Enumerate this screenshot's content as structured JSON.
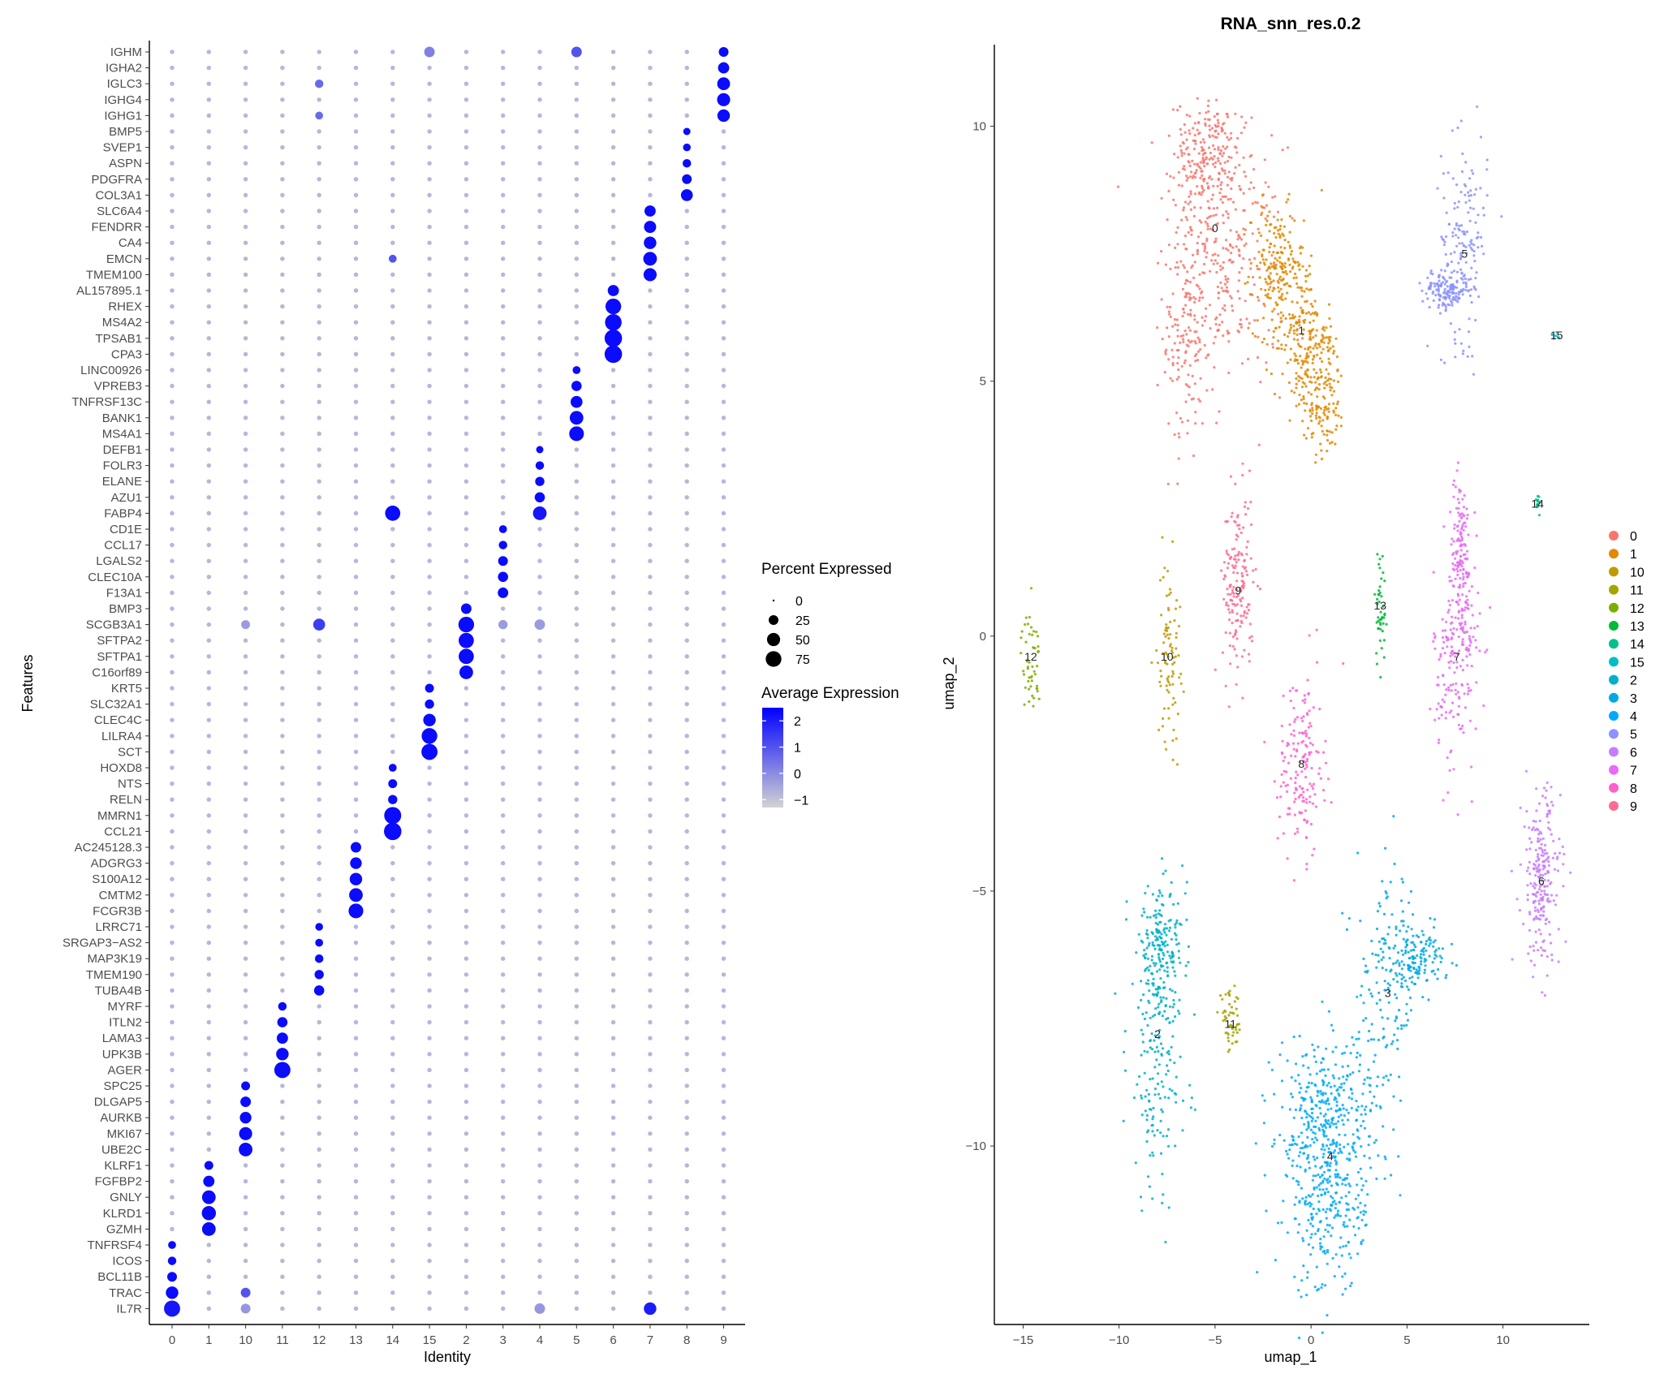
{
  "chart_data": [
    {
      "type": "dotplot",
      "xlabel": "Identity",
      "ylabel": "Features",
      "identities": [
        "0",
        "1",
        "10",
        "11",
        "12",
        "13",
        "14",
        "15",
        "2",
        "3",
        "4",
        "5",
        "6",
        "7",
        "8",
        "9"
      ],
      "features_top_to_bottom": [
        "IGHM",
        "IGHA2",
        "IGLC3",
        "IGHG4",
        "IGHG1",
        "BMP5",
        "SVEP1",
        "ASPN",
        "PDGFRA",
        "COL3A1",
        "SLC6A4",
        "FENDRR",
        "CA4",
        "EMCN",
        "TMEM100",
        "AL157895.1",
        "RHEX",
        "MS4A2",
        "TPSAB1",
        "CPA3",
        "LINC00926",
        "VPREB3",
        "TNFRSF13C",
        "BANK1",
        "MS4A1",
        "DEFB1",
        "FOLR3",
        "ELANE",
        "AZU1",
        "FABP4",
        "CD1E",
        "CCL17",
        "LGALS2",
        "CLEC10A",
        "F13A1",
        "BMP3",
        "SCGB3A1",
        "SFTPA2",
        "SFTPA1",
        "C16orf89",
        "KRT5",
        "SLC32A1",
        "CLEC4C",
        "LILRA4",
        "SCT",
        "HOXD8",
        "NTS",
        "RELN",
        "MMRN1",
        "CCL21",
        "AC245128.3",
        "ADGRG3",
        "S100A12",
        "CMTM2",
        "FCGR3B",
        "LRRC71",
        "SRGAP3−AS2",
        "MAP3K19",
        "TMEM190",
        "TUBA4B",
        "MYRF",
        "ITLN2",
        "LAMA3",
        "UPK3B",
        "AGER",
        "SPC25",
        "DLGAP5",
        "AURKB",
        "MKI67",
        "UBE2C",
        "KLRF1",
        "FGFBP2",
        "GNLY",
        "KLRD1",
        "GZMH",
        "TNFRSF4",
        "ICOS",
        "BCL11B",
        "TRAC",
        "IL7R"
      ],
      "marker_dots": [
        {
          "feature": "IGHM",
          "identity": "9",
          "pct": 25,
          "avg": 2.3
        },
        {
          "feature": "IGHA2",
          "identity": "9",
          "pct": 35,
          "avg": 2.3
        },
        {
          "feature": "IGLC3",
          "identity": "9",
          "pct": 48,
          "avg": 2.3
        },
        {
          "feature": "IGHG4",
          "identity": "9",
          "pct": 50,
          "avg": 2.3
        },
        {
          "feature": "IGHG1",
          "identity": "9",
          "pct": 45,
          "avg": 2.3
        },
        {
          "feature": "BMP5",
          "identity": "8",
          "pct": 12,
          "avg": 2.3
        },
        {
          "feature": "SVEP1",
          "identity": "8",
          "pct": 14,
          "avg": 2.3
        },
        {
          "feature": "ASPN",
          "identity": "8",
          "pct": 18,
          "avg": 2.3
        },
        {
          "feature": "PDGFRA",
          "identity": "8",
          "pct": 25,
          "avg": 2.3
        },
        {
          "feature": "COL3A1",
          "identity": "8",
          "pct": 40,
          "avg": 2.3
        },
        {
          "feature": "SLC6A4",
          "identity": "7",
          "pct": 35,
          "avg": 2.3
        },
        {
          "feature": "FENDRR",
          "identity": "7",
          "pct": 42,
          "avg": 2.3
        },
        {
          "feature": "CA4",
          "identity": "7",
          "pct": 45,
          "avg": 2.3
        },
        {
          "feature": "EMCN",
          "identity": "7",
          "pct": 55,
          "avg": 2.3
        },
        {
          "feature": "TMEM100",
          "identity": "7",
          "pct": 50,
          "avg": 2.3
        },
        {
          "feature": "AL157895.1",
          "identity": "6",
          "pct": 35,
          "avg": 2.3
        },
        {
          "feature": "RHEX",
          "identity": "6",
          "pct": 75,
          "avg": 2.3
        },
        {
          "feature": "MS4A2",
          "identity": "6",
          "pct": 85,
          "avg": 2.3
        },
        {
          "feature": "TPSAB1",
          "identity": "6",
          "pct": 95,
          "avg": 2.3
        },
        {
          "feature": "CPA3",
          "identity": "6",
          "pct": 95,
          "avg": 2.3
        },
        {
          "feature": "LINC00926",
          "identity": "5",
          "pct": 15,
          "avg": 2.3
        },
        {
          "feature": "VPREB3",
          "identity": "5",
          "pct": 28,
          "avg": 2.3
        },
        {
          "feature": "TNFRSF13C",
          "identity": "5",
          "pct": 40,
          "avg": 2.3
        },
        {
          "feature": "BANK1",
          "identity": "5",
          "pct": 55,
          "avg": 2.3
        },
        {
          "feature": "MS4A1",
          "identity": "5",
          "pct": 65,
          "avg": 2.3
        },
        {
          "feature": "DEFB1",
          "identity": "4",
          "pct": 12,
          "avg": 2.3
        },
        {
          "feature": "FOLR3",
          "identity": "4",
          "pct": 18,
          "avg": 2.3
        },
        {
          "feature": "ELANE",
          "identity": "4",
          "pct": 22,
          "avg": 2.3
        },
        {
          "feature": "AZU1",
          "identity": "4",
          "pct": 28,
          "avg": 2.3
        },
        {
          "feature": "FABP4",
          "identity": "4",
          "pct": 55,
          "avg": 2.1
        },
        {
          "feature": "FABP4",
          "identity": "14",
          "pct": 70,
          "avg": 2.3
        },
        {
          "feature": "CD1E",
          "identity": "3",
          "pct": 15,
          "avg": 2.3
        },
        {
          "feature": "CCL17",
          "identity": "3",
          "pct": 18,
          "avg": 2.3
        },
        {
          "feature": "LGALS2",
          "identity": "3",
          "pct": 25,
          "avg": 2.3
        },
        {
          "feature": "CLEC10A",
          "identity": "3",
          "pct": 28,
          "avg": 2.3
        },
        {
          "feature": "F13A1",
          "identity": "3",
          "pct": 30,
          "avg": 2.3
        },
        {
          "feature": "BMP3",
          "identity": "2",
          "pct": 30,
          "avg": 2.3
        },
        {
          "feature": "SCGB3A1",
          "identity": "2",
          "pct": 75,
          "avg": 2.3
        },
        {
          "feature": "SCGB3A1",
          "identity": "12",
          "pct": 40,
          "avg": 1.4
        },
        {
          "feature": "SFTPA2",
          "identity": "2",
          "pct": 70,
          "avg": 2.3
        },
        {
          "feature": "SFTPA1",
          "identity": "2",
          "pct": 70,
          "avg": 2.3
        },
        {
          "feature": "C16orf89",
          "identity": "2",
          "pct": 55,
          "avg": 2.3
        },
        {
          "feature": "KRT5",
          "identity": "15",
          "pct": 20,
          "avg": 2.3
        },
        {
          "feature": "SLC32A1",
          "identity": "15",
          "pct": 22,
          "avg": 2.3
        },
        {
          "feature": "CLEC4C",
          "identity": "15",
          "pct": 45,
          "avg": 2.3
        },
        {
          "feature": "LILRA4",
          "identity": "15",
          "pct": 75,
          "avg": 2.3
        },
        {
          "feature": "SCT",
          "identity": "15",
          "pct": 80,
          "avg": 2.3
        },
        {
          "feature": "HOXD8",
          "identity": "14",
          "pct": 15,
          "avg": 2.3
        },
        {
          "feature": "NTS",
          "identity": "14",
          "pct": 20,
          "avg": 2.3
        },
        {
          "feature": "RELN",
          "identity": "14",
          "pct": 22,
          "avg": 2.3
        },
        {
          "feature": "MMRN1",
          "identity": "14",
          "pct": 90,
          "avg": 2.3
        },
        {
          "feature": "CCL21",
          "identity": "14",
          "pct": 95,
          "avg": 2.3
        },
        {
          "feature": "AC245128.3",
          "identity": "13",
          "pct": 30,
          "avg": 2.3
        },
        {
          "feature": "ADGRG3",
          "identity": "13",
          "pct": 38,
          "avg": 2.3
        },
        {
          "feature": "S100A12",
          "identity": "13",
          "pct": 45,
          "avg": 2.3
        },
        {
          "feature": "CMTM2",
          "identity": "13",
          "pct": 55,
          "avg": 2.3
        },
        {
          "feature": "FCGR3B",
          "identity": "13",
          "pct": 65,
          "avg": 2.3
        },
        {
          "feature": "LRRC71",
          "identity": "12",
          "pct": 14,
          "avg": 2.3
        },
        {
          "feature": "SRGAP3−AS2",
          "identity": "12",
          "pct": 15,
          "avg": 2.3
        },
        {
          "feature": "MAP3K19",
          "identity": "12",
          "pct": 18,
          "avg": 2.3
        },
        {
          "feature": "TMEM190",
          "identity": "12",
          "pct": 22,
          "avg": 2.3
        },
        {
          "feature": "TUBA4B",
          "identity": "12",
          "pct": 28,
          "avg": 2.3
        },
        {
          "feature": "MYRF",
          "identity": "11",
          "pct": 18,
          "avg": 2.3
        },
        {
          "feature": "ITLN2",
          "identity": "11",
          "pct": 28,
          "avg": 2.3
        },
        {
          "feature": "LAMA3",
          "identity": "11",
          "pct": 35,
          "avg": 2.3
        },
        {
          "feature": "UPK3B",
          "identity": "11",
          "pct": 45,
          "avg": 2.3
        },
        {
          "feature": "AGER",
          "identity": "11",
          "pct": 80,
          "avg": 2.3
        },
        {
          "feature": "SPC25",
          "identity": "10",
          "pct": 20,
          "avg": 2.3
        },
        {
          "feature": "DLGAP5",
          "identity": "10",
          "pct": 30,
          "avg": 2.3
        },
        {
          "feature": "AURKB",
          "identity": "10",
          "pct": 38,
          "avg": 2.3
        },
        {
          "feature": "MKI67",
          "identity": "10",
          "pct": 50,
          "avg": 2.3
        },
        {
          "feature": "UBE2C",
          "identity": "10",
          "pct": 55,
          "avg": 2.3
        },
        {
          "feature": "KLRF1",
          "identity": "1",
          "pct": 20,
          "avg": 2.3
        },
        {
          "feature": "FGFBP2",
          "identity": "1",
          "pct": 35,
          "avg": 2.3
        },
        {
          "feature": "GNLY",
          "identity": "1",
          "pct": 55,
          "avg": 2.3
        },
        {
          "feature": "KLRD1",
          "identity": "1",
          "pct": 60,
          "avg": 2.3
        },
        {
          "feature": "GZMH",
          "identity": "1",
          "pct": 55,
          "avg": 2.3
        },
        {
          "feature": "TNFRSF4",
          "identity": "0",
          "pct": 15,
          "avg": 2.3
        },
        {
          "feature": "ICOS",
          "identity": "0",
          "pct": 18,
          "avg": 2.3
        },
        {
          "feature": "BCL11B",
          "identity": "0",
          "pct": 25,
          "avg": 2.3
        },
        {
          "feature": "TRAC",
          "identity": "0",
          "pct": 45,
          "avg": 2.3
        },
        {
          "feature": "IL7R",
          "identity": "0",
          "pct": 80,
          "avg": 2.1
        },
        {
          "feature": "IL7R",
          "identity": "7",
          "pct": 45,
          "avg": 2.0
        },
        {
          "feature": "IGHM",
          "identity": "5",
          "pct": 30,
          "avg": 1.0
        },
        {
          "feature": "IGHM",
          "identity": "15",
          "pct": 30,
          "avg": 0.2
        },
        {
          "feature": "EMCN",
          "identity": "14",
          "pct": 15,
          "avg": 1.0
        },
        {
          "feature": "TRAC",
          "identity": "10",
          "pct": 25,
          "avg": 1.0
        },
        {
          "feature": "IL7R",
          "identity": "4",
          "pct": 30,
          "avg": -0.2
        },
        {
          "feature": "IL7R",
          "identity": "10",
          "pct": 25,
          "avg": -0.2
        },
        {
          "feature": "SCGB3A1",
          "identity": "10",
          "pct": 20,
          "avg": -0.3
        },
        {
          "feature": "SCGB3A1",
          "identity": "3",
          "pct": 22,
          "avg": -0.3
        },
        {
          "feature": "SCGB3A1",
          "identity": "4",
          "pct": 30,
          "avg": -0.3
        },
        {
          "feature": "IGLC3",
          "identity": "12",
          "pct": 18,
          "avg": 0.6
        },
        {
          "feature": "IGHG1",
          "identity": "12",
          "pct": 15,
          "avg": 0.6
        }
      ],
      "background_dots": {
        "pct": 3,
        "avg": -0.8
      },
      "legend_size": {
        "title": "Percent Expressed",
        "breaks": [
          0,
          25,
          50,
          75
        ]
      },
      "legend_color": {
        "title": "Average Expression",
        "breaks": [
          2,
          1,
          0,
          -1
        ],
        "range": [
          -1.3,
          2.5
        ],
        "low_color": "#d3d3d3",
        "high_color": "#0000ff"
      }
    },
    {
      "type": "scatter",
      "title": "RNA_snn_res.0.2",
      "xlabel": "umap_1",
      "ylabel": "umap_2",
      "xlim": [
        -16.5,
        14.5
      ],
      "ylim": [
        -13.5,
        11.6
      ],
      "xticks": [
        -15,
        -10,
        -5,
        0,
        5,
        10
      ],
      "yticks": [
        10,
        5,
        0,
        -5,
        -10
      ],
      "legend_order": [
        "0",
        "1",
        "10",
        "11",
        "12",
        "13",
        "14",
        "15",
        "2",
        "3",
        "4",
        "5",
        "6",
        "7",
        "8",
        "9"
      ],
      "colors": {
        "0": "#F8766D",
        "1": "#E18A00",
        "10": "#BE9C00",
        "11": "#8CAB00",
        "12": "#24B700",
        "13": "#00BE70",
        "14": "#00C1AB",
        "15": "#00BBDA",
        "2": "#00ACFC",
        "3": "#8B93FF",
        "4": "#D575FE",
        "5": "#F962DD",
        "6": "#FF65AC",
        "7": "#F8766D",
        "8": "#E18A00",
        "9": "#BE9C00"
      },
      "cluster_colors": {
        "0": "#F8766D",
        "1": "#E18A00",
        "10": "#BE9C00",
        "11": "#A3A500",
        "12": "#7CAE00",
        "13": "#00BA38",
        "14": "#00C08B",
        "15": "#00BFC4",
        "2": "#00B0C8",
        "3": "#00A9E0",
        "4": "#00A9FF",
        "5": "#8C93FF",
        "6": "#C77CFF",
        "7": "#E76BF3",
        "8": "#FF61CC",
        "9": "#FF6C91"
      },
      "clusters": [
        {
          "name": "0",
          "center": [
            -5.0,
            8.0
          ],
          "n": 650
        },
        {
          "name": "1",
          "center": [
            -0.5,
            6.0
          ],
          "n": 520
        },
        {
          "name": "5",
          "center": [
            8.0,
            7.5
          ],
          "n": 300
        },
        {
          "name": "15",
          "center": [
            12.8,
            5.9
          ],
          "n": 6
        },
        {
          "name": "14",
          "center": [
            11.8,
            2.6
          ],
          "n": 12
        },
        {
          "name": "9",
          "center": [
            -3.8,
            0.9
          ],
          "n": 170
        },
        {
          "name": "10",
          "center": [
            -7.5,
            -0.4
          ],
          "n": 90
        },
        {
          "name": "12",
          "center": [
            -14.6,
            -0.4
          ],
          "n": 50
        },
        {
          "name": "13",
          "center": [
            3.6,
            0.6
          ],
          "n": 45
        },
        {
          "name": "7",
          "center": [
            7.6,
            -0.4
          ],
          "n": 330
        },
        {
          "name": "8",
          "center": [
            -0.5,
            -2.5
          ],
          "n": 170
        },
        {
          "name": "6",
          "center": [
            12.0,
            -4.8
          ],
          "n": 230
        },
        {
          "name": "2",
          "center": [
            -8.0,
            -7.8
          ],
          "n": 360
        },
        {
          "name": "11",
          "center": [
            -4.2,
            -7.6
          ],
          "n": 50
        },
        {
          "name": "3",
          "center": [
            4.0,
            -7.0
          ],
          "n": 280
        },
        {
          "name": "4",
          "center": [
            1.0,
            -10.2
          ],
          "n": 620
        }
      ]
    }
  ]
}
